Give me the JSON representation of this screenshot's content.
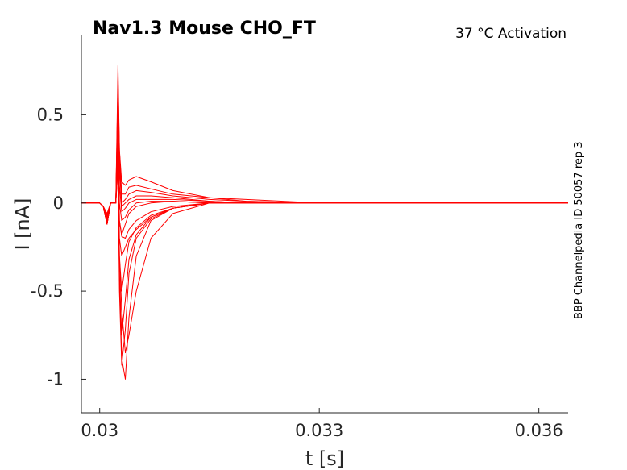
{
  "chart_data": {
    "type": "line",
    "title": "Nav1.3  Mouse  CHO_FT",
    "subtitle": "37 °C  Activation",
    "side_label": "BBP Channelpedia ID 50057 rep 3",
    "xlabel": "t [s]",
    "ylabel": "I [nA]",
    "xlim": [
      0.02975,
      0.0364
    ],
    "ylim": [
      -1.19,
      0.95
    ],
    "xticks": [
      0.03,
      0.033,
      0.036
    ],
    "xtick_labels": [
      "0.03",
      "0.033",
      "0.036"
    ],
    "yticks": [
      0.5,
      0,
      -0.5,
      -1
    ],
    "ytick_labels": [
      "0.5",
      "0",
      "-0.5",
      "-1"
    ],
    "grid": false,
    "line_color": "#ff0000",
    "series": [
      {
        "x": [
          0.02975,
          0.03,
          0.03005,
          0.0301,
          0.03015,
          0.03022,
          0.03025,
          0.03027,
          0.0303,
          0.03035,
          0.0304,
          0.0305,
          0.0307,
          0.031,
          0.0315,
          0.032,
          0.033,
          0.034,
          0.035,
          0.0364
        ],
        "y": [
          0.0,
          0.0,
          -0.02,
          -0.06,
          0.0,
          0.0,
          0.78,
          0.3,
          0.12,
          0.1,
          0.13,
          0.15,
          0.12,
          0.07,
          0.03,
          0.02,
          0.0,
          0.0,
          0.0,
          0.0
        ]
      },
      {
        "x": [
          0.02975,
          0.03,
          0.03005,
          0.0301,
          0.03015,
          0.03022,
          0.03025,
          0.03027,
          0.0303,
          0.03035,
          0.0304,
          0.0305,
          0.0307,
          0.031,
          0.0315,
          0.032,
          0.033,
          0.034,
          0.035,
          0.0364
        ],
        "y": [
          0.0,
          0.0,
          -0.02,
          -0.07,
          0.0,
          0.0,
          0.7,
          0.3,
          0.05,
          0.05,
          0.09,
          0.1,
          0.08,
          0.05,
          0.03,
          0.01,
          0.0,
          0.0,
          0.0,
          0.0
        ]
      },
      {
        "x": [
          0.02975,
          0.03,
          0.03005,
          0.0301,
          0.03015,
          0.03022,
          0.03025,
          0.03027,
          0.0303,
          0.03035,
          0.0304,
          0.0305,
          0.0307,
          0.031,
          0.0315,
          0.032,
          0.033,
          0.034,
          0.035,
          0.0364
        ],
        "y": [
          0.0,
          0.0,
          -0.02,
          -0.08,
          0.0,
          0.0,
          0.65,
          0.25,
          0.0,
          0.02,
          0.05,
          0.07,
          0.06,
          0.04,
          0.02,
          0.01,
          0.0,
          0.0,
          0.0,
          0.0
        ]
      },
      {
        "x": [
          0.02975,
          0.03,
          0.03005,
          0.0301,
          0.03015,
          0.03022,
          0.03025,
          0.03027,
          0.0303,
          0.03035,
          0.0304,
          0.0305,
          0.0307,
          0.031,
          0.0315,
          0.032,
          0.033,
          0.034,
          0.035,
          0.0364
        ],
        "y": [
          0.0,
          0.0,
          -0.02,
          -0.09,
          0.0,
          0.0,
          0.6,
          0.2,
          -0.02,
          0.0,
          0.02,
          0.04,
          0.04,
          0.03,
          0.01,
          0.0,
          0.0,
          0.0,
          0.0,
          0.0
        ]
      },
      {
        "x": [
          0.02975,
          0.03,
          0.03005,
          0.0301,
          0.03015,
          0.03022,
          0.03025,
          0.03027,
          0.0303,
          0.03035,
          0.0304,
          0.0305,
          0.0307,
          0.031,
          0.0315,
          0.032,
          0.033,
          0.034,
          0.035,
          0.0364
        ],
        "y": [
          0.0,
          0.0,
          -0.02,
          -0.1,
          0.0,
          0.0,
          0.55,
          0.1,
          -0.05,
          -0.03,
          0.0,
          0.02,
          0.02,
          0.02,
          0.01,
          0.0,
          0.0,
          0.0,
          0.0,
          0.0
        ]
      },
      {
        "x": [
          0.02975,
          0.03,
          0.03005,
          0.0301,
          0.03015,
          0.03022,
          0.03025,
          0.03027,
          0.0303,
          0.03035,
          0.0304,
          0.0305,
          0.0307,
          0.031,
          0.0315,
          0.032,
          0.033,
          0.034,
          0.035,
          0.0364
        ],
        "y": [
          0.0,
          0.0,
          -0.02,
          -0.11,
          0.0,
          0.0,
          0.5,
          0.0,
          -0.1,
          -0.08,
          -0.04,
          0.0,
          0.01,
          0.01,
          0.0,
          0.0,
          0.0,
          0.0,
          0.0,
          0.0
        ]
      },
      {
        "x": [
          0.02975,
          0.03,
          0.03005,
          0.0301,
          0.03015,
          0.03022,
          0.03025,
          0.03027,
          0.0303,
          0.03035,
          0.0304,
          0.0305,
          0.0307,
          0.031,
          0.0315,
          0.032,
          0.033,
          0.034,
          0.035,
          0.0364
        ],
        "y": [
          0.0,
          0.0,
          -0.02,
          -0.12,
          0.0,
          0.0,
          0.45,
          -0.1,
          -0.18,
          -0.12,
          -0.06,
          -0.02,
          0.0,
          0.01,
          0.0,
          0.0,
          0.0,
          0.0,
          0.0,
          0.0
        ]
      },
      {
        "x": [
          0.02975,
          0.03,
          0.03005,
          0.0301,
          0.03015,
          0.03022,
          0.03025,
          0.03027,
          0.0303,
          0.03035,
          0.0304,
          0.0305,
          0.0307,
          0.031,
          0.0315,
          0.032,
          0.033,
          0.034,
          0.035,
          0.0364
        ],
        "y": [
          0.0,
          0.0,
          -0.02,
          -0.12,
          0.0,
          0.0,
          0.4,
          -0.1,
          -0.19,
          -0.2,
          -0.15,
          -0.1,
          -0.05,
          -0.02,
          0.0,
          0.0,
          0.0,
          0.0,
          0.0,
          0.0
        ]
      },
      {
        "x": [
          0.02975,
          0.03,
          0.03005,
          0.0301,
          0.03015,
          0.03022,
          0.03025,
          0.03027,
          0.0303,
          0.03035,
          0.0304,
          0.0305,
          0.0307,
          0.031,
          0.0315,
          0.032,
          0.033,
          0.034,
          0.035,
          0.0364
        ],
        "y": [
          0.0,
          0.0,
          -0.02,
          -0.12,
          0.0,
          0.0,
          0.35,
          -0.2,
          -0.3,
          -0.25,
          -0.2,
          -0.15,
          -0.08,
          -0.03,
          0.0,
          0.0,
          0.0,
          0.0,
          0.0,
          0.0
        ]
      },
      {
        "x": [
          0.02975,
          0.03,
          0.03005,
          0.0301,
          0.03015,
          0.03022,
          0.03025,
          0.03027,
          0.0303,
          0.03035,
          0.0304,
          0.0305,
          0.0307,
          0.031,
          0.0315,
          0.032,
          0.033,
          0.034,
          0.035,
          0.0364
        ],
        "y": [
          0.0,
          0.0,
          -0.02,
          -0.12,
          0.0,
          0.0,
          0.3,
          -0.3,
          -0.5,
          -0.35,
          -0.22,
          -0.14,
          -0.07,
          -0.03,
          0.0,
          0.0,
          0.0,
          0.0,
          0.0,
          0.0
        ]
      },
      {
        "x": [
          0.02975,
          0.03,
          0.03005,
          0.0301,
          0.03015,
          0.03022,
          0.03025,
          0.03027,
          0.0303,
          0.03035,
          0.0304,
          0.0305,
          0.0307,
          0.031,
          0.0315,
          0.032,
          0.033,
          0.034,
          0.035,
          0.0364
        ],
        "y": [
          0.0,
          0.0,
          -0.02,
          -0.12,
          0.0,
          0.0,
          0.25,
          -0.4,
          -0.75,
          -0.55,
          -0.32,
          -0.18,
          -0.08,
          -0.03,
          0.0,
          0.0,
          0.0,
          0.0,
          0.0,
          0.0
        ]
      },
      {
        "x": [
          0.02975,
          0.03,
          0.03005,
          0.0301,
          0.03015,
          0.03022,
          0.03025,
          0.03027,
          0.0303,
          0.03035,
          0.0304,
          0.0305,
          0.0307,
          0.031,
          0.0315,
          0.032,
          0.033,
          0.034,
          0.035,
          0.0364
        ],
        "y": [
          0.0,
          0.0,
          -0.02,
          -0.12,
          0.0,
          0.0,
          0.22,
          -0.5,
          -0.92,
          -0.72,
          -0.4,
          -0.2,
          -0.09,
          -0.03,
          0.0,
          0.0,
          0.0,
          0.0,
          0.0,
          0.0
        ]
      },
      {
        "x": [
          0.02975,
          0.03,
          0.03005,
          0.0301,
          0.03015,
          0.03022,
          0.03025,
          0.03027,
          0.0303,
          0.03035,
          0.0304,
          0.0305,
          0.0307,
          0.031,
          0.0315,
          0.032,
          0.033,
          0.034,
          0.035,
          0.0364
        ],
        "y": [
          0.0,
          0.0,
          -0.02,
          -0.12,
          0.0,
          0.0,
          0.2,
          -0.4,
          -0.88,
          -1.0,
          -0.65,
          -0.3,
          -0.1,
          -0.03,
          0.0,
          0.0,
          0.0,
          0.0,
          0.0,
          0.0
        ]
      },
      {
        "x": [
          0.02975,
          0.03,
          0.03005,
          0.0301,
          0.03015,
          0.03022,
          0.03025,
          0.03027,
          0.0303,
          0.03035,
          0.0304,
          0.0305,
          0.0307,
          0.031,
          0.0315,
          0.032,
          0.033,
          0.034,
          0.035,
          0.0364
        ],
        "y": [
          0.0,
          0.0,
          -0.02,
          -0.12,
          0.0,
          0.0,
          0.2,
          -0.3,
          -0.6,
          -0.85,
          -0.75,
          -0.5,
          -0.2,
          -0.06,
          0.0,
          0.0,
          0.0,
          0.0,
          0.0,
          0.0
        ]
      }
    ]
  }
}
